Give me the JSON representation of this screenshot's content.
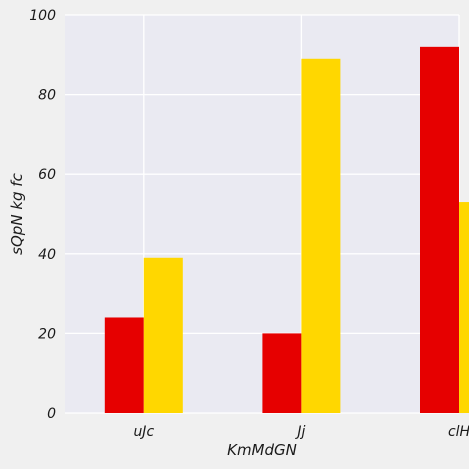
{
  "chart_data": {
    "type": "bar",
    "title": "",
    "xlabel": "KmMdGN",
    "ylabel": "sQpN kg  fc",
    "categories": [
      "uJc",
      "Jj",
      "clH"
    ],
    "series": [
      {
        "values": [
          24,
          20,
          92
        ],
        "color": "#e60000"
      },
      {
        "values": [
          39,
          89,
          53
        ],
        "color": "#ffd700"
      }
    ],
    "ylim": [
      0,
      100
    ],
    "yticks": [
      0,
      20,
      40,
      60,
      80,
      100
    ],
    "grid": true,
    "legend": "none",
    "plot_background": "#eaeaf2",
    "grid_color": "#ffffff"
  }
}
